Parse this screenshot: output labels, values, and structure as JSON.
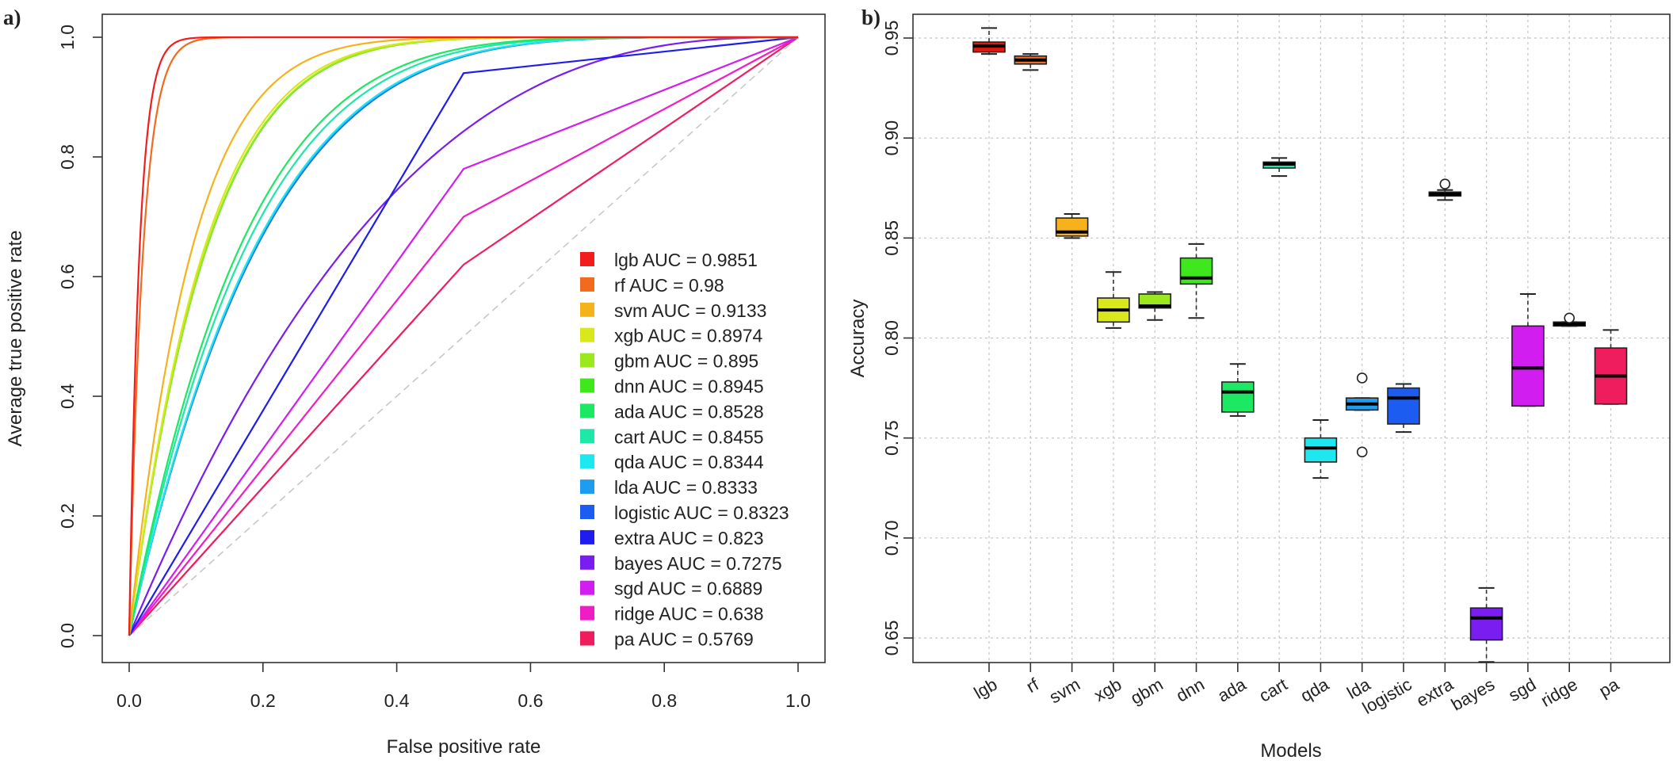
{
  "figure": {
    "panel_a_tag": "a)",
    "panel_b_tag": "b)"
  },
  "chart_data": [
    {
      "type": "line",
      "title": "",
      "xlabel": "False positive rate",
      "ylabel": "Average true positive rate",
      "xlim": [
        0,
        1
      ],
      "ylim": [
        0,
        1
      ],
      "xticks": [
        "0.0",
        "0.2",
        "0.4",
        "0.6",
        "0.8",
        "1.0"
      ],
      "yticks": [
        "0.0",
        "0.2",
        "0.4",
        "0.6",
        "0.8",
        "1.0"
      ],
      "grid": false,
      "legend_position": "bottom-right",
      "reference_line": {
        "label": "chance",
        "style": "dashed",
        "color": "#c8c8c8",
        "x": [
          0,
          1
        ],
        "y": [
          0,
          1
        ]
      },
      "series": [
        {
          "name": "lgb AUC = 0.9851",
          "model": "lgb",
          "auc": 0.9851,
          "color": "#f21d1d",
          "kind": "smooth"
        },
        {
          "name": "rf AUC = 0.98",
          "model": "rf",
          "auc": 0.98,
          "color": "#f26a1d",
          "kind": "smooth"
        },
        {
          "name": "svm AUC = 0.9133",
          "model": "svm",
          "auc": 0.9133,
          "color": "#f5b21d",
          "kind": "smooth"
        },
        {
          "name": "xgb AUC = 0.8974",
          "model": "xgb",
          "auc": 0.8974,
          "color": "#d8e81d",
          "kind": "smooth"
        },
        {
          "name": "gbm AUC = 0.895",
          "model": "gbm",
          "auc": 0.895,
          "color": "#9ae81d",
          "kind": "smooth"
        },
        {
          "name": "dnn AUC = 0.8945",
          "model": "dnn",
          "auc": 0.8945,
          "color": "#3ee81d",
          "kind": "smooth"
        },
        {
          "name": "ada AUC = 0.8528",
          "model": "ada",
          "auc": 0.8528,
          "color": "#1de864",
          "kind": "smooth"
        },
        {
          "name": "cart AUC = 0.8455",
          "model": "cart",
          "auc": 0.8455,
          "color": "#1de8a8",
          "kind": "smooth"
        },
        {
          "name": "qda AUC = 0.8344",
          "model": "qda",
          "auc": 0.8344,
          "color": "#1de8f0",
          "kind": "smooth"
        },
        {
          "name": "lda AUC = 0.8333",
          "model": "lda",
          "auc": 0.8333,
          "color": "#1d9cf0",
          "kind": "smooth"
        },
        {
          "name": "logistic AUC = 0.8323",
          "model": "logistic",
          "auc": 0.8323,
          "color": "#1d5cf0",
          "kind": "smooth"
        },
        {
          "name": "extra AUC = 0.823",
          "model": "extra",
          "auc": 0.823,
          "color": "#1d1df0",
          "kind": "point",
          "tpr_at": [
            0.5,
            0.94
          ]
        },
        {
          "name": "bayes AUC = 0.7275",
          "model": "bayes",
          "auc": 0.7275,
          "color": "#7a1df0",
          "kind": "smooth"
        },
        {
          "name": "sgd AUC = 0.6889",
          "model": "sgd",
          "auc": 0.6889,
          "color": "#d21df0",
          "kind": "point",
          "tpr_at": [
            0.5,
            0.78
          ]
        },
        {
          "name": "ridge AUC = 0.638",
          "model": "ridge",
          "auc": 0.638,
          "color": "#f01dc4",
          "kind": "point",
          "tpr_at": [
            0.5,
            0.7
          ]
        },
        {
          "name": "pa AUC = 0.5769",
          "model": "pa",
          "auc": 0.5769,
          "color": "#f01d5e",
          "kind": "point",
          "tpr_at": [
            0.5,
            0.62
          ]
        }
      ]
    },
    {
      "type": "box",
      "title": "",
      "xlabel": "Models",
      "ylabel": "Accuracy",
      "ylim": [
        0.64,
        0.96
      ],
      "yticks": [
        "0.65",
        "0.70",
        "0.75",
        "0.80",
        "0.85",
        "0.90",
        "0.95"
      ],
      "grid": true,
      "categories": [
        "lgb",
        "rf",
        "svm",
        "xgb",
        "gbm",
        "dnn",
        "ada",
        "cart",
        "qda",
        "lda",
        "logistic",
        "extra",
        "bayes",
        "sgd",
        "ridge",
        "pa"
      ],
      "boxes": [
        {
          "name": "lgb",
          "color": "#e3170d",
          "min": 0.942,
          "q1": 0.943,
          "median": 0.946,
          "q3": 0.948,
          "max": 0.955,
          "outliers": []
        },
        {
          "name": "rf",
          "color": "#f26a1d",
          "min": 0.934,
          "q1": 0.937,
          "median": 0.939,
          "q3": 0.941,
          "max": 0.942,
          "outliers": []
        },
        {
          "name": "svm",
          "color": "#f5b21d",
          "min": 0.85,
          "q1": 0.851,
          "median": 0.853,
          "q3": 0.86,
          "max": 0.862,
          "outliers": []
        },
        {
          "name": "xgb",
          "color": "#d8e81d",
          "min": 0.805,
          "q1": 0.808,
          "median": 0.814,
          "q3": 0.82,
          "max": 0.833,
          "outliers": []
        },
        {
          "name": "gbm",
          "color": "#9ae81d",
          "min": 0.809,
          "q1": 0.815,
          "median": 0.816,
          "q3": 0.822,
          "max": 0.823,
          "outliers": []
        },
        {
          "name": "dnn",
          "color": "#3ee81d",
          "min": 0.81,
          "q1": 0.827,
          "median": 0.83,
          "q3": 0.84,
          "max": 0.847,
          "outliers": []
        },
        {
          "name": "ada",
          "color": "#1de864",
          "min": 0.761,
          "q1": 0.763,
          "median": 0.773,
          "q3": 0.778,
          "max": 0.787,
          "outliers": []
        },
        {
          "name": "cart",
          "color": "#1de8a8",
          "min": 0.881,
          "q1": 0.885,
          "median": 0.887,
          "q3": 0.888,
          "max": 0.89,
          "outliers": []
        },
        {
          "name": "qda",
          "color": "#1de8f0",
          "min": 0.73,
          "q1": 0.738,
          "median": 0.745,
          "q3": 0.75,
          "max": 0.759,
          "outliers": []
        },
        {
          "name": "lda",
          "color": "#1d9cf0",
          "min": 0.764,
          "q1": 0.764,
          "median": 0.767,
          "q3": 0.77,
          "max": 0.77,
          "outliers": [
            0.78,
            0.743
          ]
        },
        {
          "name": "logistic",
          "color": "#1d5cf0",
          "min": 0.753,
          "q1": 0.757,
          "median": 0.77,
          "q3": 0.775,
          "max": 0.777,
          "outliers": []
        },
        {
          "name": "extra",
          "color": "#1d1df0",
          "min": 0.869,
          "q1": 0.871,
          "median": 0.872,
          "q3": 0.873,
          "max": 0.874,
          "outliers": [
            0.877
          ]
        },
        {
          "name": "bayes",
          "color": "#7a1df0",
          "min": 0.638,
          "q1": 0.649,
          "median": 0.66,
          "q3": 0.665,
          "max": 0.675,
          "outliers": []
        },
        {
          "name": "sgd",
          "color": "#d21df0",
          "min": 0.766,
          "q1": 0.766,
          "median": 0.785,
          "q3": 0.806,
          "max": 0.822,
          "outliers": []
        },
        {
          "name": "ridge",
          "color": "#f01dc4",
          "min": 0.806,
          "q1": 0.806,
          "median": 0.807,
          "q3": 0.808,
          "max": 0.808,
          "outliers": [
            0.81
          ]
        },
        {
          "name": "pa",
          "color": "#f01d5e",
          "min": 0.767,
          "q1": 0.767,
          "median": 0.781,
          "q3": 0.795,
          "max": 0.804,
          "outliers": []
        }
      ]
    }
  ]
}
